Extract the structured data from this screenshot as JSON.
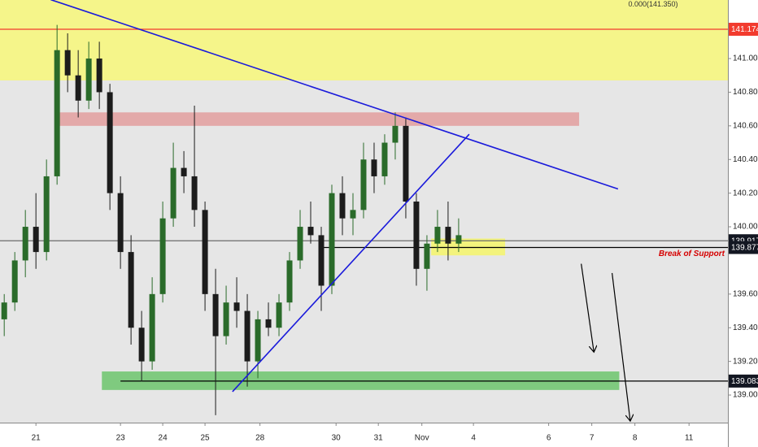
{
  "chart_data": {
    "type": "candlestick",
    "x": [
      -0.75,
      -0.5,
      -0.25,
      0,
      0.25,
      0.5,
      0.75,
      1,
      1.25,
      1.5,
      1.75,
      2,
      2.25,
      2.5,
      2.75,
      3,
      3.25,
      3.5,
      3.75,
      4,
      4.25,
      4.5,
      4.75,
      5,
      5.25,
      5.5,
      5.75,
      6,
      6.25,
      6.5,
      6.75,
      7,
      7.25,
      7.5,
      7.75,
      8,
      8.25,
      8.5,
      8.75,
      9,
      9.25,
      9.5,
      9.75,
      10
    ],
    "open": [
      139.45,
      139.55,
      139.8,
      140.0,
      139.85,
      140.3,
      141.05,
      140.9,
      140.75,
      141.0,
      140.8,
      140.2,
      139.85,
      139.4,
      139.2,
      139.6,
      140.05,
      140.35,
      140.3,
      140.1,
      139.6,
      139.35,
      139.55,
      139.5,
      139.2,
      139.45,
      139.4,
      139.55,
      139.8,
      140.0,
      139.95,
      139.65,
      140.2,
      140.05,
      140.1,
      140.4,
      140.3,
      140.5,
      140.6,
      140.15,
      139.75,
      139.9,
      140.0,
      139.9
    ],
    "high": [
      139.6,
      139.85,
      140.1,
      140.2,
      140.4,
      141.2,
      141.15,
      141.05,
      141.1,
      141.1,
      140.85,
      140.3,
      139.95,
      139.5,
      139.7,
      140.15,
      140.5,
      140.45,
      140.72,
      140.15,
      139.75,
      139.65,
      139.7,
      139.6,
      139.5,
      139.55,
      139.6,
      139.85,
      140.1,
      140.15,
      140.0,
      140.25,
      140.3,
      140.2,
      140.5,
      140.5,
      140.55,
      140.68,
      140.65,
      140.2,
      139.95,
      140.1,
      140.15,
      140.05
    ],
    "low": [
      139.35,
      139.5,
      139.7,
      139.75,
      139.8,
      140.25,
      140.8,
      140.65,
      140.7,
      140.7,
      140.1,
      139.75,
      139.3,
      139.08,
      139.15,
      139.55,
      140.0,
      140.2,
      140.0,
      139.5,
      138.88,
      139.3,
      139.4,
      139.05,
      139.1,
      139.35,
      139.35,
      139.5,
      139.75,
      139.9,
      139.5,
      139.6,
      139.95,
      139.95,
      140.05,
      140.2,
      140.25,
      140.4,
      140.05,
      139.65,
      139.62,
      139.85,
      139.8,
      139.85
    ],
    "close": [
      139.55,
      139.8,
      140.0,
      139.85,
      140.3,
      141.05,
      140.9,
      140.75,
      141.0,
      140.8,
      140.2,
      139.85,
      139.4,
      139.2,
      139.6,
      140.05,
      140.35,
      140.3,
      140.1,
      139.6,
      139.35,
      139.55,
      139.5,
      139.2,
      139.45,
      139.4,
      139.55,
      139.8,
      140.0,
      139.95,
      139.65,
      140.2,
      140.05,
      140.1,
      140.4,
      140.3,
      140.5,
      140.6,
      140.15,
      139.75,
      139.9,
      140.0,
      139.9,
      139.95
    ],
    "up_color": "#2a6b2a",
    "down_color": "#1c1c1c",
    "xlim": [
      -0.85,
      16.37
    ],
    "xticks": [
      {
        "value": 0,
        "label": "21"
      },
      {
        "value": 2,
        "label": "23"
      },
      {
        "value": 3,
        "label": "24"
      },
      {
        "value": 4,
        "label": "25"
      },
      {
        "value": 5.3,
        "label": "28"
      },
      {
        "value": 7.1,
        "label": "30"
      },
      {
        "value": 8.1,
        "label": "31"
      },
      {
        "value": 9.13,
        "label": "Nov"
      },
      {
        "value": 10.35,
        "label": "4"
      },
      {
        "value": 12.13,
        "label": "6"
      },
      {
        "value": 13.15,
        "label": "7"
      },
      {
        "value": 14.17,
        "label": "8"
      },
      {
        "value": 15.45,
        "label": "11"
      }
    ],
    "ylim": [
      138.836,
      141.348
    ],
    "yticks": [
      {
        "value": 139,
        "label": "139.000"
      },
      {
        "value": 139.2,
        "label": "139.200"
      },
      {
        "value": 139.4,
        "label": "139.400"
      },
      {
        "value": 139.6,
        "label": "139.600"
      },
      {
        "value": 140,
        "label": "140.000"
      },
      {
        "value": 140.2,
        "label": "140.200"
      },
      {
        "value": 140.4,
        "label": "140.400"
      },
      {
        "value": 140.6,
        "label": "140.600"
      },
      {
        "value": 140.8,
        "label": "140.800"
      },
      {
        "value": 141,
        "label": "141.000"
      }
    ],
    "zones": [
      {
        "from": -0.85,
        "to": 16.37,
        "low": 140.87,
        "high": 141.348,
        "color": "#f5f58a"
      },
      {
        "from": 0.5,
        "to": 12.85,
        "low": 140.6,
        "high": 140.68,
        "color": "#e3a9a9"
      },
      {
        "from": 1.56,
        "to": 13.8,
        "low": 139.03,
        "high": 139.14,
        "color": "#7fca7f"
      },
      {
        "from": 9.35,
        "to": 11.1,
        "low": 139.83,
        "high": 139.93,
        "color": "#f3f37c"
      }
    ],
    "trendlines": [
      {
        "x": [
          0.35,
          13.77
        ],
        "y": [
          141.35,
          140.225
        ],
        "color": "#1a1adb"
      },
      {
        "x": [
          4.65,
          10.25
        ],
        "y": [
          139.02,
          140.55
        ],
        "color": "#1a1adb"
      }
    ],
    "levels": [
      {
        "value": 141.174,
        "from": -0.85,
        "color": "#f23b2e",
        "box": "#f23b2e"
      },
      {
        "value": 139.917,
        "from": -0.85,
        "color": "#6a6a6a",
        "box": "#131722"
      },
      {
        "value": 139.877,
        "from": 6.79,
        "color": "#000000",
        "box": "#131722",
        "note": "Break of Support"
      },
      {
        "value": 139.083,
        "from": 2.0,
        "color": "#000000",
        "box": "#131722"
      }
    ],
    "arrows": [
      {
        "x": [
          12.9,
          13.2
        ],
        "y": [
          139.78,
          139.25
        ]
      },
      {
        "x": [
          13.63,
          14.06
        ],
        "y": [
          139.725,
          138.84
        ]
      }
    ],
    "annotations": [
      {
        "text": "0.000(141.350)",
        "x": 14.6,
        "y": 141.32
      }
    ]
  }
}
